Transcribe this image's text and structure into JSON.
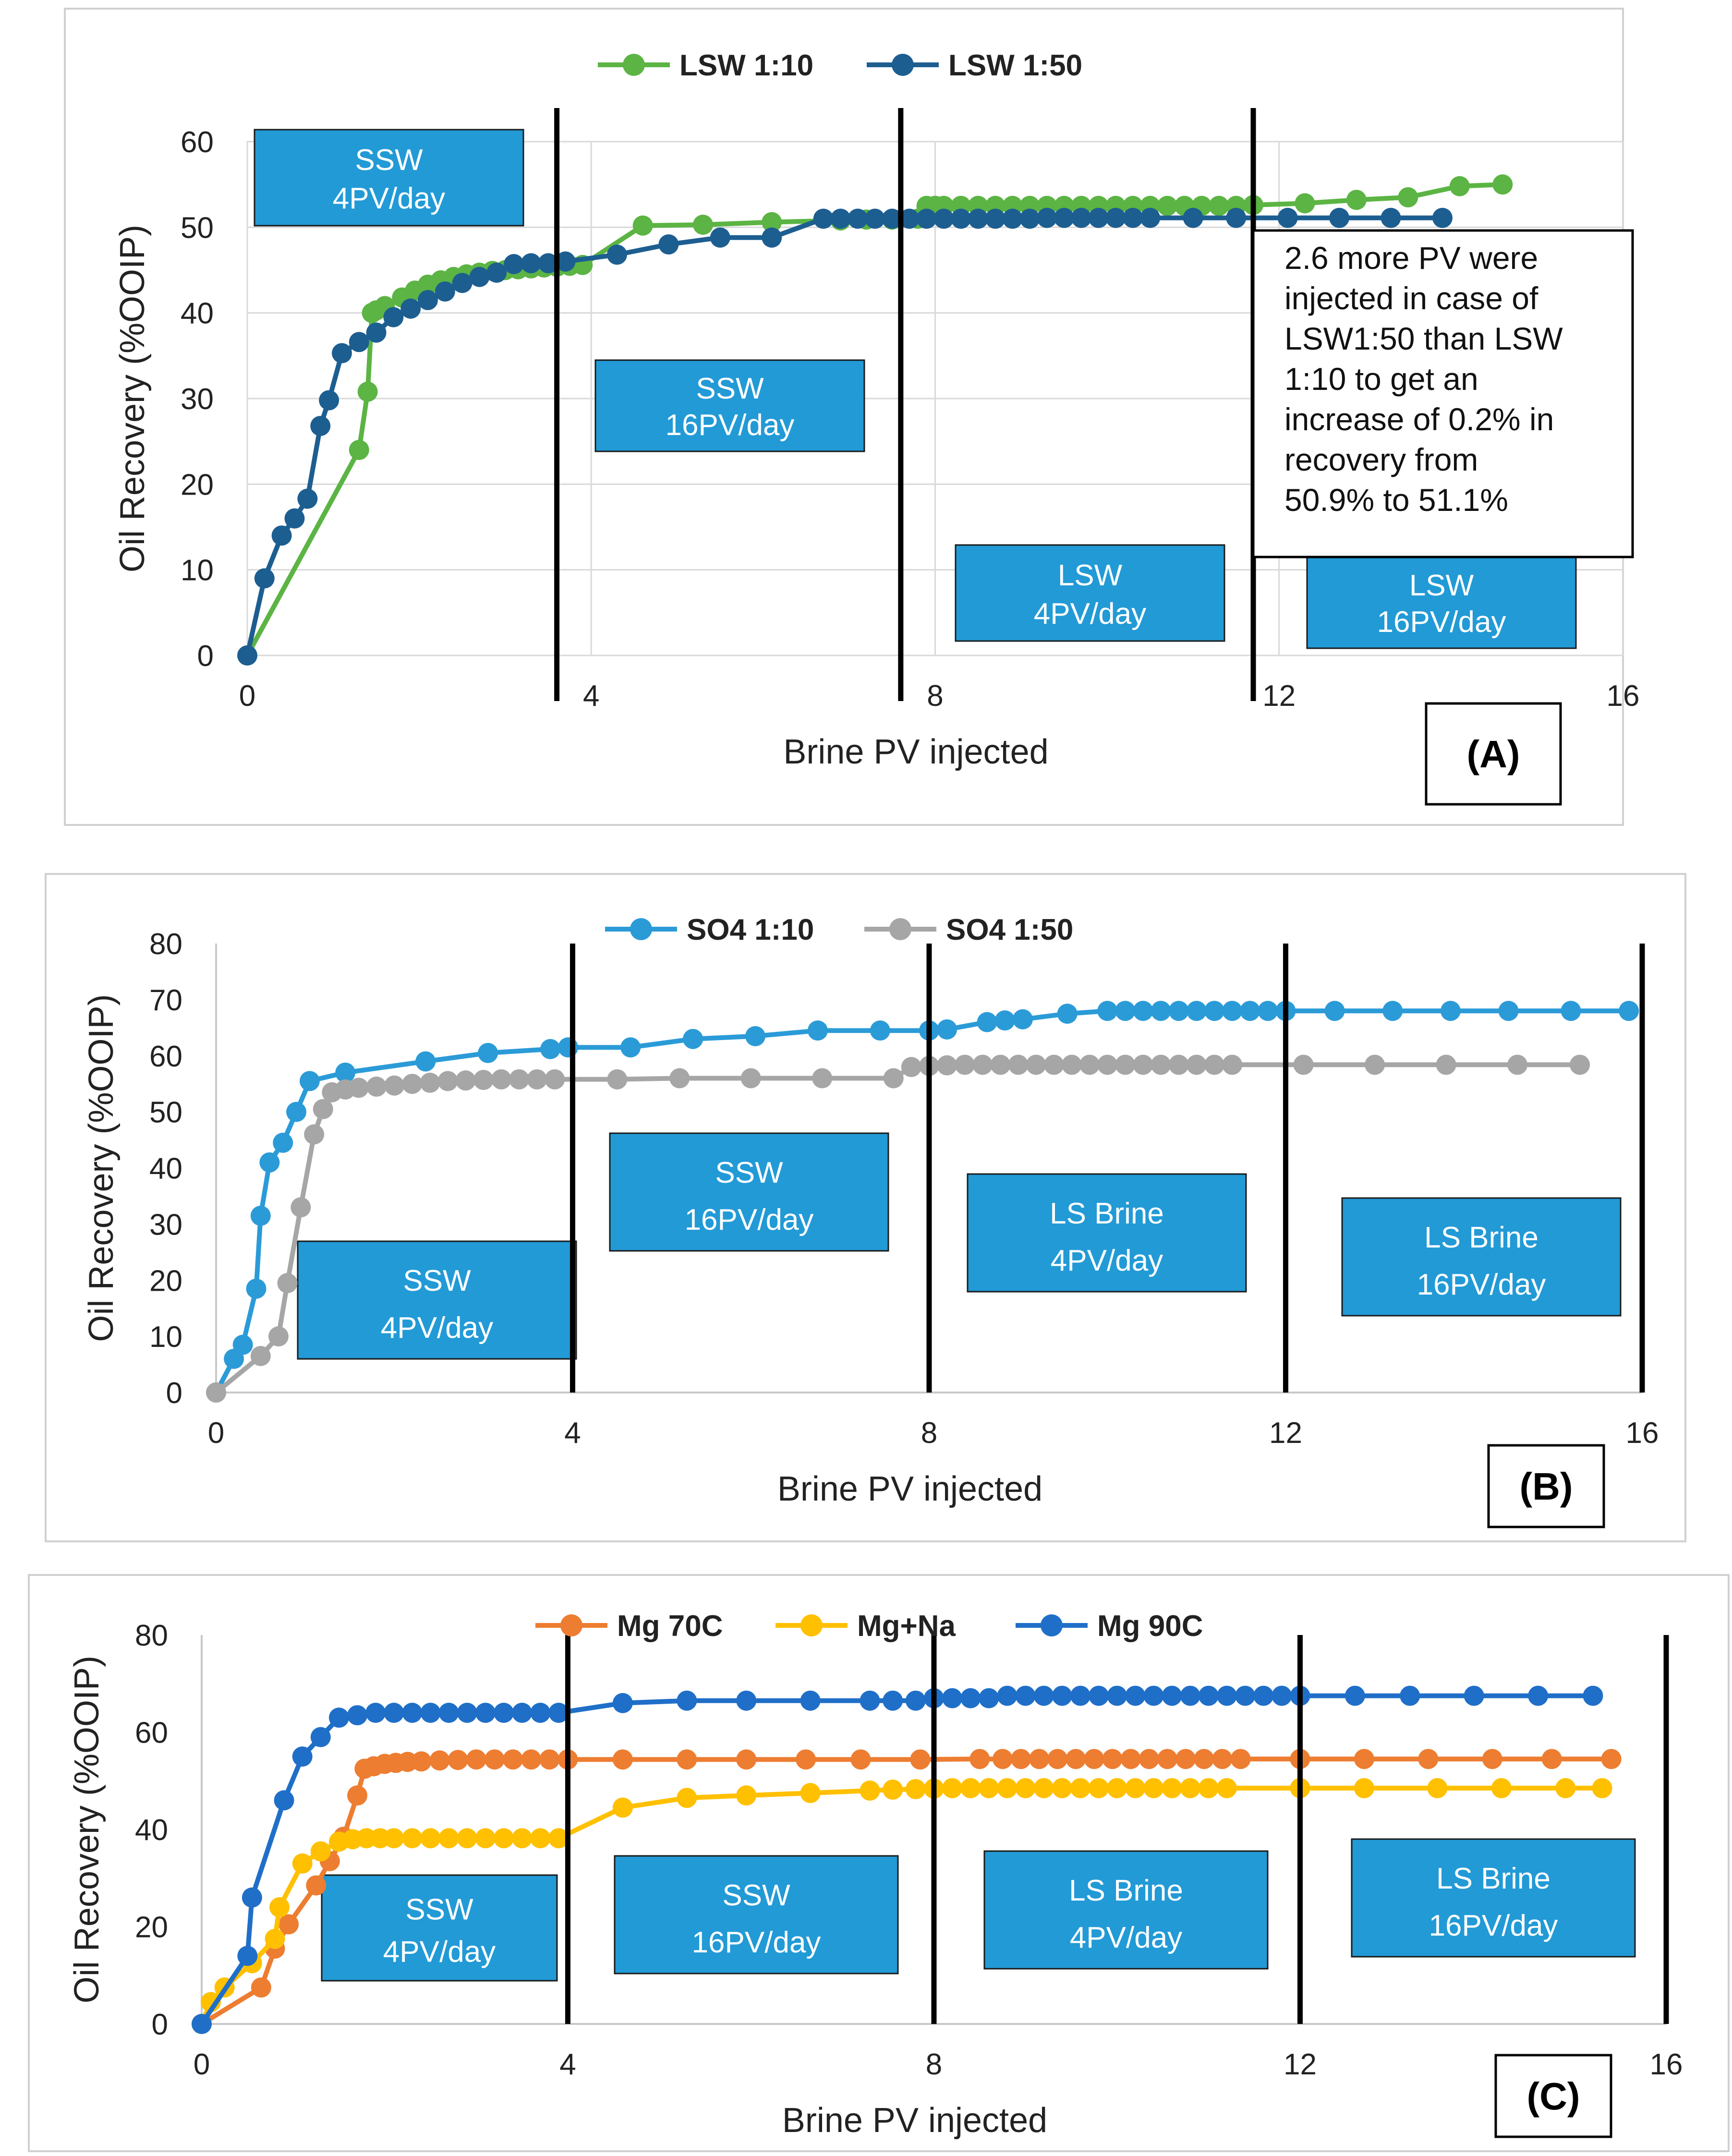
{
  "chart_data": [
    {
      "type": "line",
      "panel_label": "(A)",
      "xlabel": "Brine PV injected",
      "ylabel": "Oil Recovery (%OOIP)",
      "xlim": [
        0,
        16
      ],
      "ylim": [
        0,
        60
      ],
      "xticks": [
        0,
        4,
        8,
        12,
        16
      ],
      "yticks": [
        0,
        10,
        20,
        30,
        40,
        50,
        60
      ],
      "grid": true,
      "legend_position": "top-center",
      "phase_lines": [
        3.6,
        7.6,
        11.7
      ],
      "phases": [
        {
          "line1": "SSW",
          "line2": "4PV/day"
        },
        {
          "line1": "SSW",
          "line2": "16PV/day"
        },
        {
          "line1": "LSW",
          "line2": "4PV/day"
        },
        {
          "line1": "LSW",
          "line2": "16PV/day"
        }
      ],
      "annotation": [
        "2.6 more PV were",
        "injected in case of",
        "LSW1:50 than LSW",
        "1:10 to get an",
        "increase of 0.2% in",
        "recovery from",
        "50.9% to 51.1%"
      ],
      "series": [
        {
          "name": "LSW 1:10",
          "color": "#5bb443",
          "x": [
            0,
            1.3,
            1.4,
            1.45,
            1.5,
            1.6,
            1.8,
            1.95,
            2.1,
            2.25,
            2.4,
            2.55,
            2.7,
            2.85,
            3.0,
            3.15,
            3.3,
            3.45,
            3.6,
            3.75,
            3.9,
            4.6,
            5.3,
            6.1,
            6.9,
            7.2,
            7.5,
            7.8,
            7.9,
            8.0,
            8.1,
            8.3,
            8.5,
            8.7,
            8.9,
            9.1,
            9.3,
            9.5,
            9.7,
            9.9,
            10.1,
            10.3,
            10.5,
            10.7,
            10.9,
            11.1,
            11.3,
            11.5,
            11.7,
            12.3,
            12.9,
            13.5,
            14.1,
            14.6
          ],
          "values": [
            0,
            24,
            30.8,
            40,
            40.3,
            40.8,
            41.8,
            42.6,
            43.3,
            43.8,
            44.2,
            44.5,
            44.7,
            44.9,
            45.0,
            45.1,
            45.2,
            45.3,
            45.4,
            45.5,
            45.6,
            50.2,
            50.3,
            50.6,
            50.8,
            50.9,
            50.9,
            51.0,
            52.5,
            52.5,
            52.5,
            52.5,
            52.5,
            52.5,
            52.5,
            52.5,
            52.5,
            52.5,
            52.5,
            52.5,
            52.5,
            52.5,
            52.5,
            52.5,
            52.5,
            52.5,
            52.5,
            52.5,
            52.6,
            52.8,
            53.2,
            53.5,
            54.8,
            55.0
          ]
        },
        {
          "name": "LSW 1:50",
          "color": "#1d5e91",
          "x": [
            0,
            0.2,
            0.4,
            0.55,
            0.7,
            0.85,
            0.95,
            1.1,
            1.3,
            1.5,
            1.7,
            1.9,
            2.1,
            2.3,
            2.5,
            2.7,
            2.9,
            3.1,
            3.3,
            3.5,
            3.7,
            4.3,
            4.9,
            5.5,
            6.1,
            6.7,
            6.9,
            7.1,
            7.3,
            7.5,
            7.7,
            7.9,
            8.1,
            8.3,
            8.5,
            8.7,
            8.9,
            9.1,
            9.3,
            9.5,
            9.7,
            9.9,
            10.1,
            10.3,
            10.5,
            11.0,
            11.5,
            12.1,
            12.7,
            13.3,
            13.9
          ],
          "values": [
            0,
            9,
            14,
            16,
            18.3,
            26.8,
            29.8,
            35.3,
            36.6,
            37.7,
            39.5,
            40.5,
            41.5,
            42.5,
            43.5,
            44.2,
            44.7,
            45.7,
            45.8,
            45.8,
            46.0,
            46.8,
            48.0,
            48.8,
            48.8,
            51.0,
            51.0,
            51.0,
            51.0,
            51.0,
            51.0,
            51.0,
            51.0,
            51.0,
            51.0,
            51.0,
            51.0,
            51.0,
            51.1,
            51.1,
            51.1,
            51.1,
            51.1,
            51.1,
            51.1,
            51.1,
            51.1,
            51.1,
            51.1,
            51.1,
            51.1
          ]
        }
      ]
    },
    {
      "type": "line",
      "panel_label": "(B)",
      "xlabel": "Brine PV injected",
      "ylabel": "Oil Recovery (%OOIP)",
      "xlim": [
        0,
        16
      ],
      "ylim": [
        0,
        80
      ],
      "xticks": [
        0,
        4,
        8,
        12,
        16
      ],
      "yticks": [
        0,
        10,
        20,
        30,
        40,
        50,
        60,
        70,
        80
      ],
      "grid": false,
      "legend_position": "top-center",
      "phase_lines": [
        4,
        8,
        12,
        16
      ],
      "phases": [
        {
          "line1": "SSW",
          "line2": "4PV/day"
        },
        {
          "line1": "SSW",
          "line2": "16PV/day"
        },
        {
          "line1": "LS Brine",
          "line2": "4PV/day"
        },
        {
          "line1": "LS Brine",
          "line2": "16PV/day"
        }
      ],
      "series": [
        {
          "name": "SO4 1:10",
          "color": "#2b9bd8",
          "x": [
            0,
            0.2,
            0.3,
            0.45,
            0.5,
            0.6,
            0.75,
            0.9,
            1.05,
            1.45,
            2.35,
            3.05,
            3.75,
            3.95,
            4.65,
            5.35,
            6.05,
            6.75,
            7.45,
            8.0,
            8.2,
            8.65,
            8.85,
            9.05,
            9.55,
            10.0,
            10.2,
            10.4,
            10.6,
            10.8,
            11.0,
            11.2,
            11.4,
            11.6,
            11.8,
            12.0,
            12.55,
            13.2,
            13.85,
            14.5,
            15.2,
            15.85
          ],
          "values": [
            0,
            6,
            8.5,
            18.5,
            31.5,
            41,
            44.5,
            50,
            55.5,
            57,
            59,
            60.5,
            61.2,
            61.5,
            61.5,
            63,
            63.5,
            64.5,
            64.5,
            64.5,
            64.7,
            66.0,
            66.3,
            66.5,
            67.5,
            68.0,
            68.0,
            68.0,
            68.0,
            68.0,
            68.0,
            68.0,
            68.0,
            68.0,
            68.0,
            68.0,
            68.0,
            68.0,
            68.0,
            68.0,
            68.0,
            68.0
          ]
        },
        {
          "name": "SO4 1:50",
          "color": "#a6a6a6",
          "x": [
            0,
            0.5,
            0.7,
            0.8,
            0.95,
            1.1,
            1.2,
            1.3,
            1.45,
            1.6,
            1.8,
            2.0,
            2.2,
            2.4,
            2.6,
            2.8,
            3.0,
            3.2,
            3.4,
            3.6,
            3.8,
            4.5,
            5.2,
            6.0,
            6.8,
            7.6,
            7.8,
            8.0,
            8.2,
            8.4,
            8.6,
            8.8,
            9.0,
            9.2,
            9.4,
            9.6,
            9.8,
            10.0,
            10.2,
            10.4,
            10.6,
            10.8,
            11.0,
            11.2,
            11.4,
            12.2,
            13.0,
            13.8,
            14.6,
            15.3
          ],
          "values": [
            0,
            6.5,
            10,
            19.5,
            33,
            46,
            50.5,
            53.5,
            54,
            54.3,
            54.5,
            54.7,
            55.0,
            55.2,
            55.5,
            55.6,
            55.7,
            55.8,
            55.8,
            55.8,
            55.8,
            55.8,
            56.0,
            56.0,
            56.0,
            56.0,
            58.0,
            58.2,
            58.3,
            58.4,
            58.4,
            58.4,
            58.4,
            58.4,
            58.4,
            58.4,
            58.4,
            58.4,
            58.4,
            58.4,
            58.4,
            58.4,
            58.4,
            58.4,
            58.4,
            58.4,
            58.4,
            58.4,
            58.4,
            58.4
          ]
        }
      ]
    },
    {
      "type": "line",
      "panel_label": "(C)",
      "xlabel": "Brine PV injected",
      "ylabel": "Oil Recovery (%OOIP)",
      "xlim": [
        0,
        16
      ],
      "ylim": [
        0,
        80
      ],
      "xticks": [
        0,
        4,
        8,
        12,
        16
      ],
      "yticks": [
        0,
        20,
        40,
        60,
        80
      ],
      "grid": false,
      "legend_position": "top-center",
      "phase_lines": [
        4,
        8,
        12,
        16
      ],
      "phases": [
        {
          "line1": "SSW",
          "line2": "4PV/day"
        },
        {
          "line1": "SSW",
          "line2": "16PV/day"
        },
        {
          "line1": "LS Brine",
          "line2": "4PV/day"
        },
        {
          "line1": "LS Brine",
          "line2": "16PV/day"
        }
      ],
      "series": [
        {
          "name": "Mg 70C",
          "color": "#ed7d31",
          "x": [
            0,
            0.65,
            0.8,
            0.95,
            1.25,
            1.4,
            1.55,
            1.7,
            1.78,
            1.88,
            2.0,
            2.12,
            2.25,
            2.4,
            2.6,
            2.8,
            3.0,
            3.2,
            3.4,
            3.6,
            3.8,
            4.0,
            4.6,
            5.3,
            5.95,
            6.6,
            7.2,
            7.85,
            8.5,
            8.75,
            8.95,
            9.15,
            9.35,
            9.55,
            9.75,
            9.95,
            10.15,
            10.35,
            10.55,
            10.75,
            10.95,
            11.15,
            11.35,
            12.0,
            12.7,
            13.4,
            14.1,
            14.75,
            15.4
          ],
          "values": [
            0,
            7.5,
            15.5,
            20.5,
            28.5,
            33.5,
            38.5,
            47,
            52.5,
            53.0,
            53.5,
            53.7,
            53.9,
            54.0,
            54.2,
            54.3,
            54.4,
            54.4,
            54.4,
            54.4,
            54.4,
            54.4,
            54.4,
            54.4,
            54.4,
            54.4,
            54.4,
            54.4,
            54.5,
            54.5,
            54.5,
            54.5,
            54.5,
            54.5,
            54.5,
            54.5,
            54.5,
            54.5,
            54.5,
            54.5,
            54.5,
            54.5,
            54.5,
            54.5,
            54.5,
            54.5,
            54.5,
            54.5,
            54.5
          ]
        },
        {
          "name": "Mg+Na",
          "color": "#ffc000",
          "x": [
            0,
            0.1,
            0.25,
            0.55,
            0.8,
            0.85,
            1.1,
            1.3,
            1.5,
            1.65,
            1.8,
            1.95,
            2.1,
            2.3,
            2.5,
            2.7,
            2.9,
            3.1,
            3.3,
            3.5,
            3.7,
            3.9,
            4.6,
            5.3,
            5.95,
            6.65,
            7.3,
            7.55,
            7.8,
            8.0,
            8.2,
            8.4,
            8.6,
            8.8,
            9.0,
            9.2,
            9.4,
            9.6,
            9.8,
            10.0,
            10.2,
            10.4,
            10.6,
            10.8,
            11.0,
            11.2,
            12.0,
            12.7,
            13.5,
            14.2,
            14.9,
            15.3
          ],
          "values": [
            0,
            4.5,
            7.5,
            12.5,
            17.5,
            24,
            33,
            35.5,
            37.5,
            38,
            38.2,
            38.2,
            38.2,
            38.2,
            38.2,
            38.2,
            38.2,
            38.2,
            38.2,
            38.2,
            38.2,
            38.2,
            44.5,
            46.5,
            47.0,
            47.5,
            48.0,
            48.2,
            48.3,
            48.4,
            48.5,
            48.5,
            48.5,
            48.5,
            48.5,
            48.5,
            48.5,
            48.5,
            48.5,
            48.5,
            48.5,
            48.5,
            48.5,
            48.5,
            48.5,
            48.5,
            48.5,
            48.5,
            48.5,
            48.5,
            48.5,
            48.5
          ]
        },
        {
          "name": "Mg 90C",
          "color": "#1f6fc8",
          "x": [
            0,
            0.5,
            0.55,
            0.9,
            1.1,
            1.3,
            1.5,
            1.7,
            1.9,
            2.1,
            2.3,
            2.5,
            2.7,
            2.9,
            3.1,
            3.3,
            3.5,
            3.7,
            3.9,
            4.6,
            5.3,
            5.95,
            6.65,
            7.3,
            7.55,
            7.8,
            8.0,
            8.2,
            8.4,
            8.6,
            8.8,
            9.0,
            9.2,
            9.4,
            9.6,
            9.8,
            10.0,
            10.2,
            10.4,
            10.6,
            10.8,
            11.0,
            11.2,
            11.4,
            11.6,
            11.8,
            12.0,
            12.6,
            13.2,
            13.9,
            14.6,
            15.2
          ],
          "values": [
            0,
            14,
            26,
            46,
            55,
            59,
            63,
            63.5,
            64,
            64,
            64,
            64,
            64,
            64,
            64,
            64,
            64,
            64,
            64,
            66.0,
            66.5,
            66.5,
            66.5,
            66.5,
            66.5,
            66.5,
            67.0,
            67.0,
            67.0,
            67.0,
            67.5,
            67.5,
            67.5,
            67.5,
            67.5,
            67.5,
            67.5,
            67.5,
            67.5,
            67.5,
            67.5,
            67.5,
            67.5,
            67.5,
            67.5,
            67.5,
            67.5,
            67.5,
            67.5,
            67.5,
            67.5,
            67.5
          ]
        }
      ]
    }
  ]
}
